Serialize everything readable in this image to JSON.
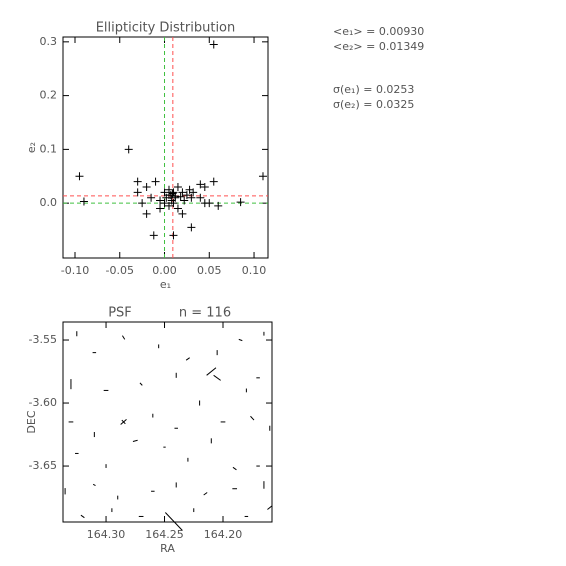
{
  "chart_data": [
    {
      "type": "scatter",
      "title": "Ellipticity Distribution",
      "x_label": "e₁",
      "y_label": "e₂",
      "xlim": [
        -0.1134,
        0.1156
      ],
      "ylim": [
        -0.102,
        0.309
      ],
      "xticks": [
        {
          "value": -0.1,
          "label": "-0.10"
        },
        {
          "value": -0.05,
          "label": "-0.05"
        },
        {
          "value": 0,
          "label": "0.00"
        },
        0.05,
        {
          "value": 0.1,
          "label": "0.10"
        }
      ],
      "yticks": [
        {
          "value": 0,
          "label": "0.0"
        },
        0.1,
        0.2,
        0.3
      ],
      "color": "#000000",
      "marker": "+",
      "x": [
        -0.095,
        -0.09,
        -0.04,
        0.11,
        0.085,
        0.055,
        0.045,
        0.04,
        0.05,
        0.06,
        -0.03,
        -0.025,
        -0.02,
        -0.015,
        -0.01,
        -0.005,
        0.0,
        0.002,
        0.005,
        0.007,
        0.008,
        0.01,
        0.012,
        0.015,
        0.018,
        0.02,
        0.022,
        0.025,
        0.028,
        0.03,
        0.032,
        -0.012,
        0.01,
        0.03,
        0.045,
        0.04,
        0.0,
        0.005,
        0.01,
        -0.005,
        0.015,
        0.02,
        -0.03,
        0.055,
        0.005,
        0.009,
        0.012,
        -0.02
      ],
      "y": [
        0.05,
        0.003,
        0.1,
        0.05,
        0.002,
        0.04,
        0.03,
        0.035,
        0.0,
        -0.005,
        0.02,
        0.0,
        0.03,
        0.01,
        0.04,
        -0.01,
        0.02,
        0.01,
        0.025,
        0.015,
        0.005,
        0.02,
        0.01,
        0.03,
        0.012,
        0.02,
        0.005,
        0.015,
        0.025,
        0.01,
        0.02,
        -0.06,
        -0.06,
        -0.045,
        0.0,
        0.01,
        0.0,
        -0.005,
        0.0,
        0.005,
        -0.01,
        -0.02,
        0.04,
        0.295,
        0.015,
        0.018,
        0.013,
        -0.02
      ],
      "mean_lines": {
        "color": "#ff5050",
        "x": {
          "label": "<e₁> = 0.00930",
          "value": 0.0093
        },
        "y": {
          "label": "<e₂> = 0.01349",
          "value": 0.01349
        }
      },
      "zero_lines": {
        "value": 0,
        "color": "#40c040"
      },
      "annotations": [
        "σ(e₁) = 0.0253",
        "σ(e₂) = 0.0325"
      ]
    },
    {
      "type": "quiver",
      "title": "PSF",
      "subtitle": "n = 116",
      "x_label": "RA",
      "y_label": "DEC",
      "xlim": [
        164.3368,
        164.1581
      ],
      "ylim": [
        -3.6944,
        -3.5357
      ],
      "xticks": [
        {
          "value": 164.3,
          "label": "164.30"
        },
        164.25,
        {
          "value": 164.2,
          "label": "164.20"
        }
      ],
      "yticks": [
        -3.55,
        {
          "value": -3.6,
          "label": "-3.60"
        },
        -3.65
      ],
      "color": "#000000",
      "x": [
        164.325,
        164.31,
        164.285,
        164.255,
        164.23,
        164.205,
        164.185,
        164.165,
        164.33,
        164.3,
        164.27,
        164.24,
        164.21,
        164.205,
        164.18,
        164.17,
        164.33,
        164.31,
        164.285,
        164.285,
        164.26,
        164.24,
        164.22,
        164.2,
        164.175,
        164.16,
        164.325,
        164.3,
        164.275,
        164.25,
        164.23,
        164.21,
        164.19,
        164.17,
        164.335,
        164.31,
        164.29,
        164.26,
        164.24,
        164.215,
        164.19,
        164.165,
        164.32,
        164.295,
        164.27,
        164.225,
        164.18,
        164.16,
        164.242
      ],
      "y": [
        -3.545,
        -3.56,
        -3.548,
        -3.555,
        -3.565,
        -3.56,
        -3.55,
        -3.545,
        -3.585,
        -3.59,
        -3.585,
        -3.578,
        -3.575,
        -3.58,
        -3.59,
        -3.58,
        -3.615,
        -3.625,
        -3.615,
        -3.615,
        -3.61,
        -3.62,
        -3.6,
        -3.615,
        -3.612,
        -3.62,
        -3.64,
        -3.65,
        -3.63,
        -3.635,
        -3.645,
        -3.63,
        -3.652,
        -3.65,
        -3.67,
        -3.665,
        -3.675,
        -3.67,
        -3.665,
        -3.672,
        -3.668,
        -3.665,
        -3.69,
        -3.685,
        -3.69,
        -3.685,
        -3.69,
        -3.683,
        -3.694
      ],
      "dx": [
        0,
        0.003,
        0.002,
        0,
        -0.003,
        0,
        0.003,
        0,
        0,
        0.004,
        0.002,
        0,
        0.008,
        -0.006,
        0,
        0.003,
        0.004,
        0,
        0.005,
        -0.003,
        0,
        0.003,
        0,
        0.004,
        0.003,
        0,
        0.003,
        0,
        0.004,
        0.002,
        0,
        0,
        0.003,
        0.003,
        0,
        0.002,
        0,
        0.003,
        0,
        0.003,
        0.004,
        0,
        0.003,
        0,
        0.004,
        0,
        0.003,
        0.004,
        -0.0146
      ],
      "dy": [
        0.004,
        0,
        0.003,
        0.003,
        0.002,
        0.004,
        0.001,
        0.003,
        0.008,
        0,
        0.002,
        0.004,
        -0.006,
        -0.004,
        0.003,
        0,
        0,
        0.004,
        -0.004,
        -0.003,
        0.003,
        0,
        0.004,
        0,
        0.003,
        0.004,
        0,
        0.003,
        -0.001,
        0,
        0.003,
        0.004,
        0.002,
        0,
        0.005,
        0.001,
        0.003,
        0,
        0.004,
        -0.002,
        0,
        0.006,
        0.002,
        0.003,
        0,
        0.003,
        0,
        -0.003,
        -0.0143
      ]
    }
  ]
}
